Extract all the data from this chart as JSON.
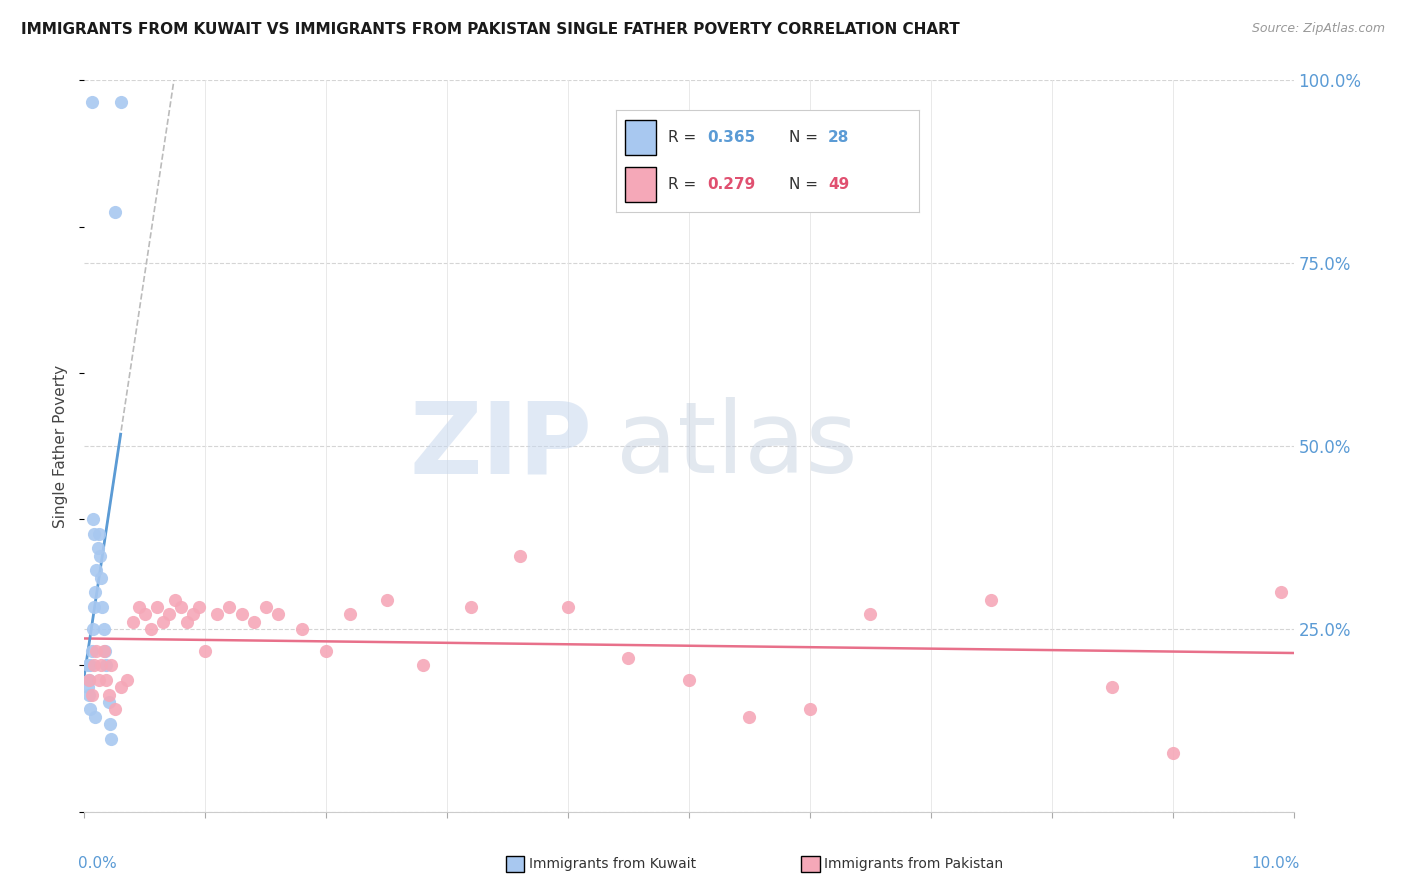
{
  "title": "IMMIGRANTS FROM KUWAIT VS IMMIGRANTS FROM PAKISTAN SINGLE FATHER POVERTY CORRELATION CHART",
  "source": "Source: ZipAtlas.com",
  "ylabel": "Single Father Poverty",
  "kuwait_color": "#A8C8F0",
  "pakistan_color": "#F5A8B8",
  "kuwait_line_color": "#5B9BD5",
  "pakistan_line_color": "#E8708A",
  "kuwait_dashed_color": "#BBBBBB",
  "watermark_color": "#DCE8F5",
  "kuwait_R": "0.365",
  "kuwait_N": "28",
  "pakistan_R": "0.279",
  "pakistan_N": "49",
  "background_color": "#ffffff",
  "kuwait_x": [
    0.0003,
    0.0004,
    0.0005,
    0.0006,
    0.0007,
    0.0008,
    0.0009,
    0.001,
    0.0011,
    0.0012,
    0.0013,
    0.0014,
    0.0015,
    0.0016,
    0.0017,
    0.0018,
    0.002,
    0.0021,
    0.0022,
    0.0025,
    0.003,
    0.0006,
    0.0007,
    0.0008,
    0.0003,
    0.0004,
    0.0005,
    0.0009
  ],
  "kuwait_y": [
    0.2,
    0.18,
    0.2,
    0.22,
    0.25,
    0.28,
    0.3,
    0.33,
    0.36,
    0.38,
    0.35,
    0.32,
    0.28,
    0.25,
    0.22,
    0.2,
    0.15,
    0.12,
    0.1,
    0.82,
    0.97,
    0.97,
    0.4,
    0.38,
    0.17,
    0.16,
    0.14,
    0.13
  ],
  "pakistan_x": [
    0.0004,
    0.0006,
    0.0008,
    0.001,
    0.0012,
    0.0014,
    0.0016,
    0.0018,
    0.002,
    0.0022,
    0.0025,
    0.003,
    0.0035,
    0.004,
    0.0045,
    0.005,
    0.0055,
    0.006,
    0.0065,
    0.007,
    0.0075,
    0.008,
    0.0085,
    0.009,
    0.0095,
    0.01,
    0.011,
    0.012,
    0.013,
    0.014,
    0.015,
    0.016,
    0.018,
    0.02,
    0.022,
    0.025,
    0.028,
    0.032,
    0.036,
    0.04,
    0.045,
    0.05,
    0.055,
    0.06,
    0.065,
    0.075,
    0.085,
    0.09,
    0.099
  ],
  "pakistan_y": [
    0.18,
    0.16,
    0.2,
    0.22,
    0.18,
    0.2,
    0.22,
    0.18,
    0.16,
    0.2,
    0.14,
    0.17,
    0.18,
    0.26,
    0.28,
    0.27,
    0.25,
    0.28,
    0.26,
    0.27,
    0.29,
    0.28,
    0.26,
    0.27,
    0.28,
    0.22,
    0.27,
    0.28,
    0.27,
    0.26,
    0.28,
    0.27,
    0.25,
    0.22,
    0.27,
    0.29,
    0.2,
    0.28,
    0.35,
    0.28,
    0.21,
    0.18,
    0.13,
    0.14,
    0.27,
    0.29,
    0.17,
    0.08,
    0.3
  ],
  "xlim": [
    0,
    0.1
  ],
  "ylim": [
    0,
    1.0
  ],
  "right_yticks": [
    0.0,
    0.25,
    0.5,
    0.75,
    1.0
  ],
  "right_yticklabels": [
    "",
    "25.0%",
    "50.0%",
    "75.0%",
    "100.0%"
  ],
  "xtick_positions": [
    0.0,
    0.01,
    0.02,
    0.03,
    0.04,
    0.05,
    0.06,
    0.07,
    0.08,
    0.09,
    0.1
  ]
}
